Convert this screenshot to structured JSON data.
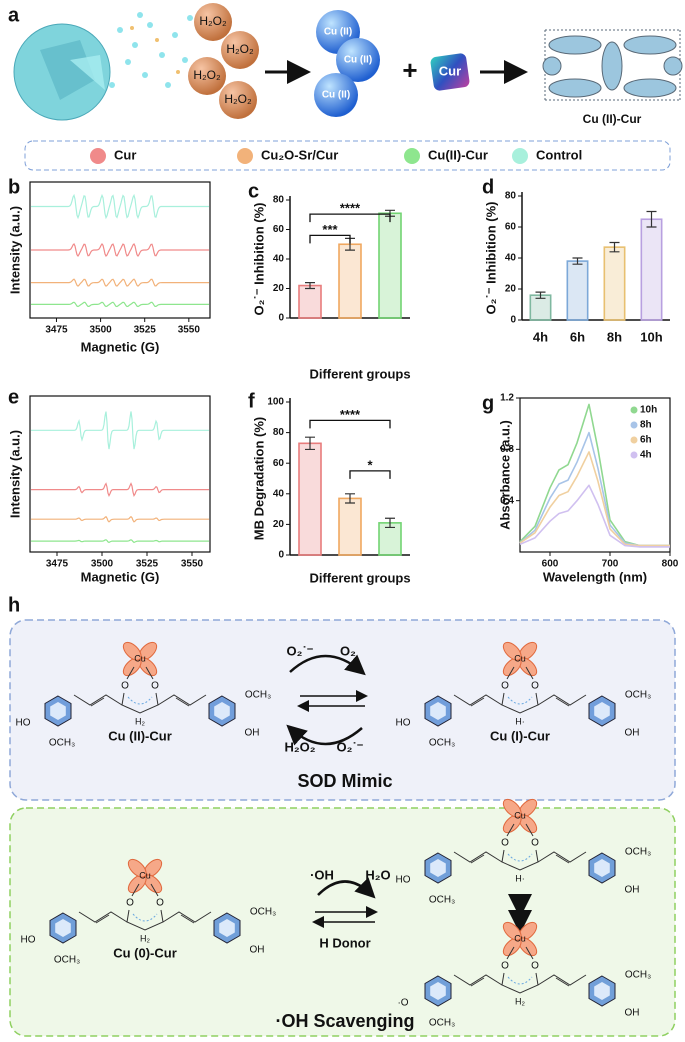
{
  "panel_labels": [
    "a",
    "b",
    "c",
    "d",
    "e",
    "f",
    "g",
    "h"
  ],
  "scheme": {
    "h2o2": [
      "H₂O₂",
      "H₂O₂",
      "H₂O₂",
      "H₂O₂"
    ],
    "cu": [
      "Cu (II)",
      "Cu (II)",
      "Cu (II)"
    ],
    "plus": "+",
    "cur": "Cur",
    "product": "Cu (II)-Cur"
  },
  "legend": [
    {
      "name": "Cur",
      "color": "#f08a8a"
    },
    {
      "name": "Cu₂O-Sr/Cur",
      "color": "#f2b27a"
    },
    {
      "name": "Cu(II)-Cur",
      "color": "#8ee68e"
    },
    {
      "name": "Control",
      "color": "#a8f0dc"
    }
  ],
  "chart_data": [
    {
      "type": "line",
      "xlabel": "Magnetic (G)",
      "ylabel": "Intensity (a.u.)",
      "xlim": [
        3460,
        3562
      ],
      "xticks": [
        3475,
        3500,
        3525,
        3550
      ]
    },
    {
      "type": "bar",
      "xlabel": "Different groups",
      "ylabel": "O₂˙⁻ Inhibition (%)",
      "categories": [
        null,
        null,
        null
      ],
      "values": [
        22,
        50,
        71
      ],
      "errors": [
        2,
        4,
        2
      ],
      "colors": [
        "#e87c7c",
        "#f0a860",
        "#72d472"
      ],
      "ylim": [
        0,
        80
      ],
      "yticks": [
        0,
        20,
        40,
        60,
        80
      ],
      "annotations": [
        "***",
        "****"
      ]
    },
    {
      "type": "bar",
      "ylabel": "O₂˙⁻ Inhibition (%)",
      "categories": [
        "4h",
        "6h",
        "8h",
        "10h"
      ],
      "values": [
        16,
        38,
        47,
        65
      ],
      "errors": [
        2,
        2,
        3,
        5
      ],
      "colors": [
        "#7fb8a0",
        "#7ca8d8",
        "#e8c070",
        "#b8a0e0"
      ],
      "ylim": [
        0,
        80
      ],
      "yticks": [
        0,
        20,
        40,
        60,
        80
      ]
    },
    {
      "type": "line",
      "xlabel": "Magnetic (G)",
      "ylabel": "Intensity (a.u.)",
      "xlim": [
        3460,
        3560
      ],
      "xticks": [
        3475,
        3500,
        3525,
        3550
      ]
    },
    {
      "type": "bar",
      "xlabel": "Different groups",
      "ylabel": "MB Degradation (%)",
      "categories": [
        null,
        null,
        null
      ],
      "values": [
        73,
        37,
        21
      ],
      "errors": [
        4,
        3,
        3
      ],
      "colors": [
        "#e87c7c",
        "#f0a860",
        "#72d472"
      ],
      "ylim": [
        0,
        100
      ],
      "yticks": [
        0,
        20,
        40,
        60,
        80,
        100
      ],
      "annotations": [
        "****",
        "*"
      ]
    },
    {
      "type": "line",
      "xlabel": "Wavelength (nm)",
      "ylabel": "Absorbance (a.u.)",
      "x": [
        550,
        575,
        600,
        615,
        630,
        645,
        665,
        680,
        700,
        725,
        750,
        800
      ],
      "series": [
        {
          "name": "10h",
          "color": "#90d890",
          "values": [
            0.08,
            0.2,
            0.5,
            0.64,
            0.68,
            0.85,
            1.15,
            0.8,
            0.25,
            0.08,
            0.05,
            0.05
          ]
        },
        {
          "name": "8h",
          "color": "#a8c4e8",
          "values": [
            0.07,
            0.17,
            0.42,
            0.53,
            0.56,
            0.7,
            0.93,
            0.65,
            0.21,
            0.07,
            0.05,
            0.05
          ]
        },
        {
          "name": "6h",
          "color": "#f0d0a0",
          "values": [
            0.07,
            0.15,
            0.35,
            0.44,
            0.47,
            0.59,
            0.78,
            0.55,
            0.18,
            0.06,
            0.05,
            0.05
          ]
        },
        {
          "name": "4h",
          "color": "#d0c0f0",
          "values": [
            0.06,
            0.11,
            0.24,
            0.3,
            0.32,
            0.4,
            0.52,
            0.37,
            0.13,
            0.05,
            0.04,
            0.04
          ]
        }
      ],
      "xlim": [
        550,
        800
      ],
      "xticks": [
        600,
        700,
        800
      ],
      "ylim": [
        0,
        1.2
      ],
      "yticks": [
        0.4,
        0.8,
        1.2
      ]
    }
  ],
  "mechanism": {
    "sod": {
      "title": "SOD Mimic",
      "texts": [
        "O₂˙⁻",
        "O₂",
        "H₂O₂",
        "O₂˙⁻"
      ]
    },
    "oh": {
      "title": "·OH Scavenging",
      "texts": [
        "·OH",
        "H₂O",
        "H Donor"
      ]
    },
    "molecules": [
      {
        "name": "Cu (II)-Cur",
        "cu": "Cu",
        "o": "O",
        "bridge": "H₂",
        "left_a": "HO",
        "left_b": "OCH₃",
        "right_a": "OCH₃",
        "right_b": "OH"
      },
      {
        "name": "Cu (I)-Cur",
        "cu": "Cu",
        "o": "O",
        "bridge": "H·",
        "left_a": "HO",
        "left_b": "OCH₃",
        "right_a": "OCH₃",
        "right_b": "OH"
      },
      {
        "name": "Cu (0)-Cur",
        "cu": "Cu",
        "o": "O",
        "bridge": "H₂",
        "left_a": "HO",
        "left_b": "OCH₃",
        "right_a": "OCH₃",
        "right_b": "OH"
      },
      {
        "cu": "Cu",
        "o": "O",
        "bridge": "H·",
        "left_a": "HO",
        "left_b": "OCH₃",
        "right_a": "OCH₃",
        "right_b": "OH"
      },
      {
        "cu": "Cu",
        "o": "O",
        "bridge": "H₂",
        "left_a": "·O",
        "left_b": "OCH₃",
        "right_a": "OCH₃",
        "right_b": "OH"
      }
    ]
  }
}
